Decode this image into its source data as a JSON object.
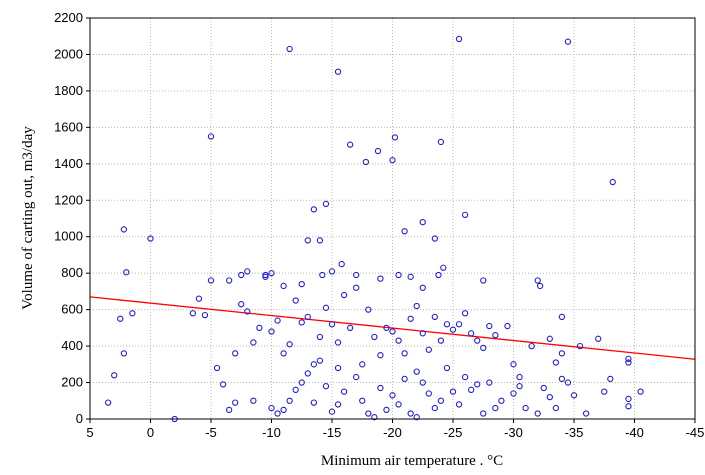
{
  "chart_data": {
    "type": "scatter",
    "xlabel": "Minimum air temperature  . °C",
    "ylabel": "Volume of carting out, m3/day",
    "xlim": [
      5,
      -45
    ],
    "ylim": [
      0,
      2200
    ],
    "x_ticks": [
      "5",
      "0",
      "-5",
      "-10",
      "-15",
      "-20",
      "-25",
      "-30",
      "-35",
      "-40",
      "-45"
    ],
    "x_tick_values": [
      5,
      0,
      -5,
      -10,
      -15,
      -20,
      -25,
      -30,
      -35,
      -40,
      -45
    ],
    "y_ticks": [
      "0",
      "200",
      "400",
      "600",
      "800",
      "1000",
      "1200",
      "1400",
      "1600",
      "1800",
      "2000",
      "2200"
    ],
    "y_tick_values": [
      0,
      200,
      400,
      600,
      800,
      1000,
      1200,
      1400,
      1600,
      1800,
      2000,
      2200
    ],
    "grid": true,
    "colors": {
      "points": "#1f1fd6",
      "trend": "#ff0000",
      "grid": "#b8b8b8"
    },
    "trend_line": {
      "x": [
        5,
        -45
      ],
      "y": [
        670,
        328
      ]
    },
    "points": [
      [
        0,
        990
      ],
      [
        -11.5,
        2030
      ],
      [
        -15.5,
        1905
      ],
      [
        -25.5,
        2085
      ],
      [
        -34.5,
        2070
      ],
      [
        -38.2,
        1300
      ],
      [
        -5,
        1550
      ],
      [
        -16.5,
        1505
      ],
      [
        -18.8,
        1470
      ],
      [
        -20.2,
        1545
      ],
      [
        -24,
        1520
      ],
      [
        -17.8,
        1410
      ],
      [
        -20,
        1420
      ],
      [
        -26,
        1120
      ],
      [
        -14.5,
        1180
      ],
      [
        -13.5,
        1150
      ],
      [
        -22.5,
        1080
      ],
      [
        -21,
        1030
      ],
      [
        2.2,
        1040
      ],
      [
        -13,
        980
      ],
      [
        -14,
        980
      ],
      [
        -23.5,
        990
      ],
      [
        2,
        805
      ],
      [
        -5,
        760
      ],
      [
        -7.5,
        790
      ],
      [
        -8,
        810
      ],
      [
        -9.5,
        790
      ],
      [
        -10,
        800
      ],
      [
        -11,
        730
      ],
      [
        -12.5,
        740
      ],
      [
        -14.2,
        790
      ],
      [
        -15,
        810
      ],
      [
        -15.8,
        850
      ],
      [
        -17,
        790
      ],
      [
        -19,
        770
      ],
      [
        -20.5,
        790
      ],
      [
        -21.5,
        780
      ],
      [
        -22.5,
        720
      ],
      [
        -23.8,
        790
      ],
      [
        -24.2,
        830
      ],
      [
        -27.5,
        760
      ],
      [
        -32,
        760
      ],
      [
        -32.2,
        730
      ],
      [
        -34,
        560
      ],
      [
        -35.5,
        400
      ],
      [
        -37,
        440
      ],
      [
        1.5,
        580
      ],
      [
        2.2,
        360
      ],
      [
        2.5,
        550
      ],
      [
        3,
        240
      ],
      [
        3.5,
        90
      ],
      [
        -3.5,
        580
      ],
      [
        -4,
        660
      ],
      [
        -4.5,
        570
      ],
      [
        -5.5,
        280
      ],
      [
        -6,
        190
      ],
      [
        -6.5,
        760
      ],
      [
        -7,
        360
      ],
      [
        -7.5,
        630
      ],
      [
        -8,
        590
      ],
      [
        -8.5,
        420
      ],
      [
        -9,
        500
      ],
      [
        -9.5,
        780
      ],
      [
        -10,
        480
      ],
      [
        -10.5,
        540
      ],
      [
        -11,
        360
      ],
      [
        -11.5,
        410
      ],
      [
        -12,
        650
      ],
      [
        -12.5,
        530
      ],
      [
        -13,
        560
      ],
      [
        -13.5,
        300
      ],
      [
        -14,
        450
      ],
      [
        -14.5,
        610
      ],
      [
        -15,
        520
      ],
      [
        -15.5,
        420
      ],
      [
        -16,
        680
      ],
      [
        -16.5,
        500
      ],
      [
        -17,
        720
      ],
      [
        -17.5,
        300
      ],
      [
        -18,
        600
      ],
      [
        -18.5,
        450
      ],
      [
        -19,
        350
      ],
      [
        -19.5,
        500
      ],
      [
        -20,
        480
      ],
      [
        -20.5,
        430
      ],
      [
        -21,
        360
      ],
      [
        -21.5,
        550
      ],
      [
        -22,
        620
      ],
      [
        -22.5,
        470
      ],
      [
        -23,
        380
      ],
      [
        -23.5,
        560
      ],
      [
        -24,
        430
      ],
      [
        -24.5,
        520
      ],
      [
        -25,
        490
      ],
      [
        -25.5,
        520
      ],
      [
        -26,
        580
      ],
      [
        -26.5,
        470
      ],
      [
        -27,
        430
      ],
      [
        -27.5,
        390
      ],
      [
        -28,
        510
      ],
      [
        -28.5,
        460
      ],
      [
        -29.5,
        510
      ],
      [
        -30,
        300
      ],
      [
        -30.5,
        230
      ],
      [
        -31.5,
        400
      ],
      [
        -33,
        440
      ],
      [
        -33.5,
        310
      ],
      [
        -34,
        360
      ],
      [
        -39.5,
        330
      ],
      [
        -39.5,
        310
      ],
      [
        -2,
        0
      ],
      [
        -6.5,
        50
      ],
      [
        -7,
        90
      ],
      [
        -8.5,
        100
      ],
      [
        -10,
        60
      ],
      [
        -10.5,
        30
      ],
      [
        -11,
        50
      ],
      [
        -11.5,
        100
      ],
      [
        -12,
        160
      ],
      [
        -12.5,
        200
      ],
      [
        -13,
        250
      ],
      [
        -13.5,
        90
      ],
      [
        -14,
        320
      ],
      [
        -14.5,
        180
      ],
      [
        -15,
        40
      ],
      [
        -15.5,
        80
      ],
      [
        -16,
        150
      ],
      [
        -17,
        230
      ],
      [
        -17.5,
        100
      ],
      [
        -18,
        30
      ],
      [
        -18.5,
        10
      ],
      [
        -19,
        170
      ],
      [
        -19.5,
        50
      ],
      [
        -20,
        130
      ],
      [
        -20.5,
        80
      ],
      [
        -21,
        220
      ],
      [
        -21.5,
        30
      ],
      [
        -22,
        260
      ],
      [
        -22.5,
        200
      ],
      [
        -23,
        140
      ],
      [
        -23.5,
        60
      ],
      [
        -24,
        100
      ],
      [
        -24.5,
        280
      ],
      [
        -25,
        150
      ],
      [
        -25.5,
        80
      ],
      [
        -26,
        230
      ],
      [
        -26.5,
        160
      ],
      [
        -27,
        190
      ],
      [
        -27.5,
        30
      ],
      [
        -28,
        200
      ],
      [
        -28.5,
        60
      ],
      [
        -29,
        100
      ],
      [
        -30,
        140
      ],
      [
        -30.5,
        180
      ],
      [
        -31,
        60
      ],
      [
        -32,
        30
      ],
      [
        -32.5,
        170
      ],
      [
        -33,
        120
      ],
      [
        -33.5,
        60
      ],
      [
        -34,
        220
      ],
      [
        -34.5,
        200
      ],
      [
        -35,
        130
      ],
      [
        -36,
        30
      ],
      [
        -37.5,
        150
      ],
      [
        -38,
        220
      ],
      [
        -39.5,
        110
      ],
      [
        -39.5,
        70
      ],
      [
        -40.5,
        150
      ],
      [
        -22,
        10
      ],
      [
        -15.5,
        280
      ]
    ]
  }
}
